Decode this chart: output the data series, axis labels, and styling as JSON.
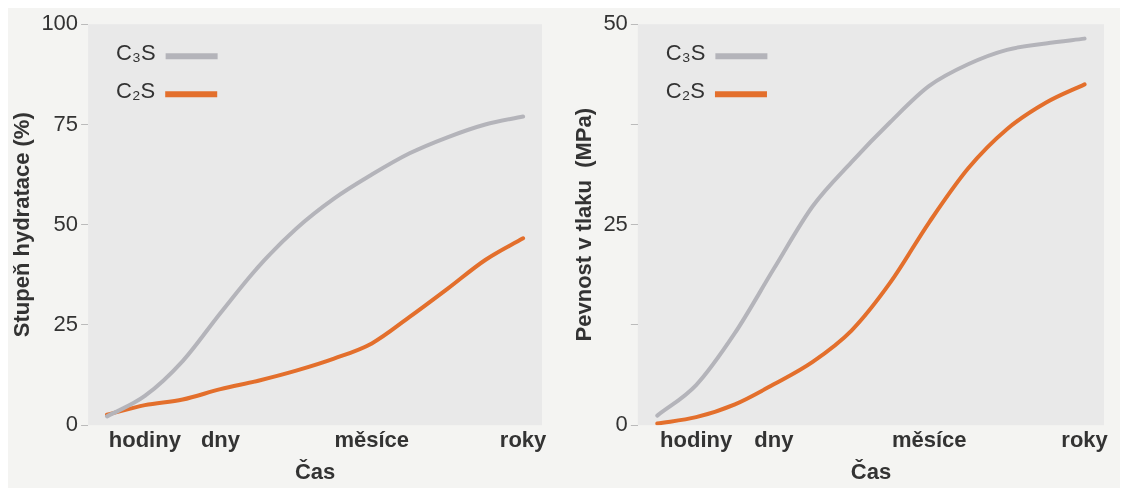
{
  "chart_data": [
    {
      "type": "line",
      "xlabel": "Čas",
      "ylabel": "Stupeň hydratace (%)",
      "categories": [
        null,
        "hodiny",
        null,
        "dny",
        null,
        null,
        null,
        "měsíce",
        null,
        null,
        null,
        "roky"
      ],
      "ylim": [
        0,
        100
      ],
      "yticks": [
        0,
        25,
        50,
        75,
        100
      ],
      "grid": false,
      "legend": "top left",
      "marker": "none",
      "line_style": "solid",
      "series": [
        {
          "name": "C₃S",
          "color": "#b4b4ba",
          "values": [
            2.2,
            7.3,
            16,
            28,
            39.5,
            49,
            56.5,
            62.5,
            67.8,
            71.8,
            75,
            77
          ]
        },
        {
          "name": "C₂S",
          "color": "#e36f2c",
          "values": [
            2.6,
            5,
            6.4,
            9,
            11.1,
            13.6,
            16.6,
            20.4,
            27,
            34,
            41.2,
            46.6
          ]
        }
      ]
    },
    {
      "type": "line",
      "xlabel": "Čas",
      "ylabel": "Pevnost v tlaku  (MPa)",
      "categories": [
        null,
        "hodiny",
        null,
        "dny",
        null,
        null,
        null,
        "měsíce",
        null,
        null,
        null,
        "roky"
      ],
      "ylim": [
        0,
        50
      ],
      "yticks": [
        0,
        {
          "value": 12.5,
          "label": null
        },
        25,
        {
          "value": 37.5,
          "label": null
        },
        50
      ],
      "grid": false,
      "legend": "top left",
      "marker": "none",
      "line_style": "solid",
      "series": [
        {
          "name": "C₃S",
          "color": "#b4b4ba",
          "values": [
            1.2,
            5,
            11.5,
            19.5,
            27.3,
            32.8,
            37.8,
            42.3,
            45,
            46.8,
            47.6,
            48.2
          ]
        },
        {
          "name": "C₂S",
          "color": "#e36f2c",
          "values": [
            0.2,
            1,
            2.6,
            5.1,
            7.9,
            11.8,
            17.8,
            25.3,
            32,
            36.9,
            40.2,
            42.5
          ]
        }
      ]
    }
  ]
}
